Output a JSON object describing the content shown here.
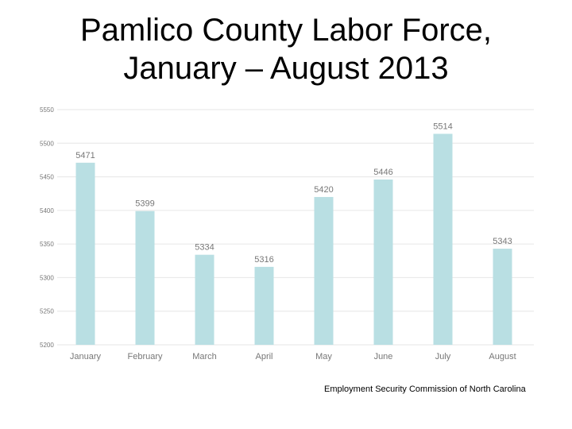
{
  "title_line1": "Pamlico County Labor Force,",
  "title_line2": "January – August 2013",
  "source": "Employment Security Commission of North Carolina",
  "chart_data": {
    "type": "bar",
    "categories": [
      "January",
      "February",
      "March",
      "April",
      "May",
      "June",
      "July",
      "August"
    ],
    "values": [
      5471,
      5399,
      5334,
      5316,
      5420,
      5446,
      5514,
      5343
    ],
    "data_labels": [
      "5471",
      "5399",
      "5334",
      "5316",
      "5420",
      "5446",
      "5514",
      "5343"
    ],
    "ylim": [
      5200,
      5550
    ],
    "yticks": [
      5200,
      5250,
      5300,
      5350,
      5400,
      5450,
      5500,
      5550
    ],
    "ytick_labels": [
      "5200",
      "5250",
      "5300",
      "5350",
      "5400",
      "5450",
      "5500",
      "5550"
    ],
    "grid": true,
    "bar_color": "#b9dfe3",
    "grid_color": "#e6e6e6",
    "label_color": "#777777"
  }
}
